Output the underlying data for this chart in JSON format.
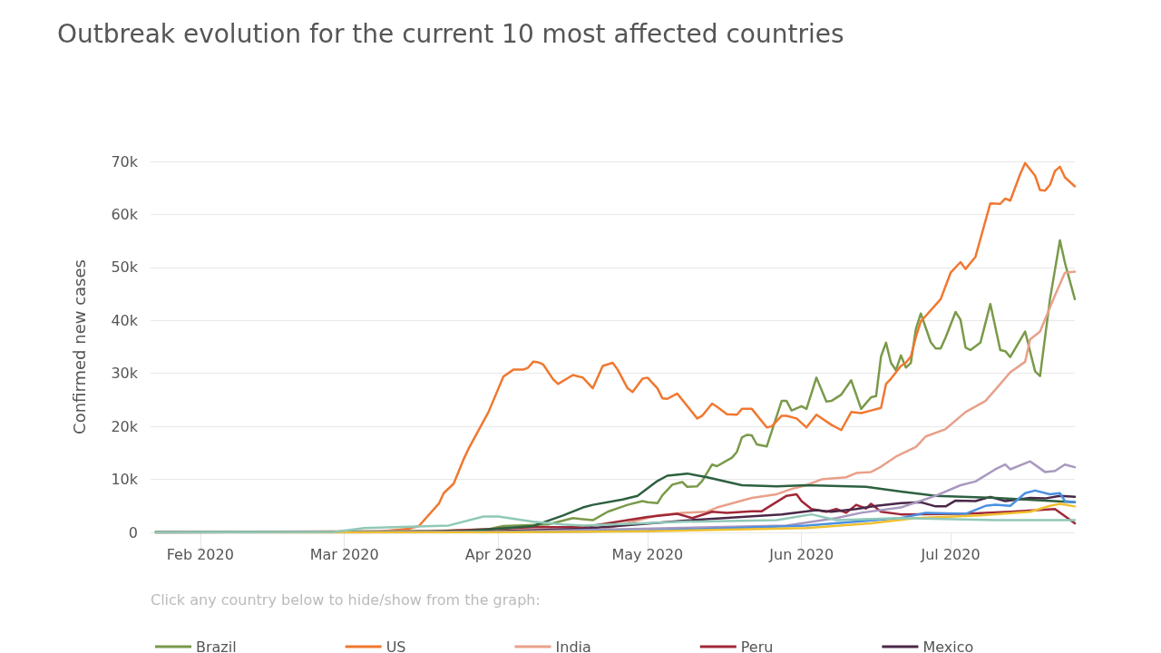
{
  "chart_data": {
    "type": "line",
    "title": "Outbreak evolution for the current 10 most affected countries",
    "ylabel": "Confirmed new cases",
    "annotations": [
      "Click any country below to hide/show from the graph:"
    ],
    "xlim": [
      "2020-01-22",
      "2020-07-26"
    ],
    "xticks": [
      {
        "value": "2020-02-01",
        "label": "Feb 2020"
      },
      {
        "value": "2020-03-01",
        "label": "Mar 2020"
      },
      {
        "value": "2020-04-01",
        "label": "Apr 2020"
      },
      {
        "value": "2020-05-01",
        "label": "May 2020"
      },
      {
        "value": "2020-06-01",
        "label": "Jun 2020"
      },
      {
        "value": "2020-07-01",
        "label": "Jul 2020"
      }
    ],
    "ylim": [
      0,
      70000
    ],
    "yticks": [
      0,
      {
        "value": 10000,
        "label": "10k"
      },
      {
        "value": 20000,
        "label": "20k"
      },
      {
        "value": 30000,
        "label": "30k"
      },
      {
        "value": 40000,
        "label": "40k"
      },
      {
        "value": 50000,
        "label": "50k"
      },
      {
        "value": 60000,
        "label": "60k"
      },
      {
        "value": 70000,
        "label": "70k"
      }
    ],
    "grid": "y",
    "legend": "bottom",
    "marker": "none",
    "series": [
      {
        "name": "Brazil",
        "color": "#7a9a4a",
        "x": [
          "2020-01-23",
          "2020-03-15",
          "2020-03-30",
          "2020-04-02",
          "2020-04-11",
          "2020-04-16",
          "2020-04-18",
          "2020-04-20",
          "2020-04-23",
          "2020-04-27",
          "2020-04-30",
          "2020-05-01",
          "2020-05-03",
          "2020-05-04",
          "2020-05-06",
          "2020-05-08",
          "2020-05-09",
          "2020-05-11",
          "2020-05-12",
          "2020-05-14",
          "2020-05-15",
          "2020-05-18",
          "2020-05-19",
          "2020-05-20",
          "2020-05-21",
          "2020-05-22",
          "2020-05-23",
          "2020-05-25",
          "2020-05-28",
          "2020-05-29",
          "2020-05-30",
          "2020-06-01",
          "2020-06-02",
          "2020-06-04",
          "2020-06-06",
          "2020-06-07",
          "2020-06-09",
          "2020-06-11",
          "2020-06-13",
          "2020-06-15",
          "2020-06-16",
          "2020-06-17",
          "2020-06-18",
          "2020-06-19",
          "2020-06-20",
          "2020-06-21",
          "2020-06-22",
          "2020-06-23",
          "2020-06-24",
          "2020-06-25",
          "2020-06-27",
          "2020-06-28",
          "2020-06-29",
          "2020-06-30",
          "2020-07-02",
          "2020-07-03",
          "2020-07-04",
          "2020-07-05",
          "2020-07-07",
          "2020-07-09",
          "2020-07-11",
          "2020-07-12",
          "2020-07-13",
          "2020-07-16",
          "2020-07-18",
          "2020-07-19",
          "2020-07-21",
          "2020-07-23",
          "2020-07-24",
          "2020-07-26"
        ],
        "values": [
          0,
          100,
          600,
          1200,
          1500,
          2700,
          2500,
          2300,
          3900,
          5200,
          5900,
          5700,
          5500,
          7000,
          9000,
          9500,
          8600,
          8700,
          9700,
          12800,
          12500,
          14100,
          15200,
          17900,
          18400,
          18300,
          16600,
          16200,
          24800,
          24800,
          23000,
          23800,
          23300,
          29200,
          24700,
          24800,
          26000,
          28700,
          23300,
          25500,
          25700,
          33200,
          35800,
          32000,
          30600,
          33400,
          31100,
          32000,
          38300,
          41300,
          35900,
          34700,
          34700,
          36800,
          41600,
          40100,
          34900,
          34400,
          35800,
          43100,
          34400,
          34200,
          33100,
          37900,
          30400,
          29500,
          44000,
          55100,
          50900,
          44000
        ]
      },
      {
        "name": "US",
        "color": "#f07830",
        "x": [
          "2020-01-23",
          "2020-03-01",
          "2020-03-06",
          "2020-03-14",
          "2020-03-16",
          "2020-03-20",
          "2020-03-21",
          "2020-03-23",
          "2020-03-25",
          "2020-03-26",
          "2020-03-30",
          "2020-04-02",
          "2020-04-04",
          "2020-04-06",
          "2020-04-07",
          "2020-04-08",
          "2020-04-09",
          "2020-04-10",
          "2020-04-12",
          "2020-04-13",
          "2020-04-16",
          "2020-04-18",
          "2020-04-20",
          "2020-04-22",
          "2020-04-24",
          "2020-04-25",
          "2020-04-27",
          "2020-04-28",
          "2020-04-30",
          "2020-05-01",
          "2020-05-03",
          "2020-05-04",
          "2020-05-05",
          "2020-05-07",
          "2020-05-11",
          "2020-05-12",
          "2020-05-14",
          "2020-05-15",
          "2020-05-17",
          "2020-05-19",
          "2020-05-20",
          "2020-05-22",
          "2020-05-25",
          "2020-05-26",
          "2020-05-28",
          "2020-05-29",
          "2020-05-31",
          "2020-06-02",
          "2020-06-04",
          "2020-06-07",
          "2020-06-09",
          "2020-06-11",
          "2020-06-13",
          "2020-06-15",
          "2020-06-17",
          "2020-06-18",
          "2020-06-19",
          "2020-06-21",
          "2020-06-22",
          "2020-06-23",
          "2020-06-24",
          "2020-06-25",
          "2020-06-29",
          "2020-07-01",
          "2020-07-03",
          "2020-07-04",
          "2020-07-06",
          "2020-07-09",
          "2020-07-11",
          "2020-07-12",
          "2020-07-13",
          "2020-07-15",
          "2020-07-16",
          "2020-07-18",
          "2020-07-19",
          "2020-07-20",
          "2020-07-21",
          "2020-07-22",
          "2020-07-23",
          "2020-07-24",
          "2020-07-26"
        ],
        "values": [
          0,
          0,
          0,
          700,
          1200,
          5400,
          7400,
          9200,
          13800,
          15800,
          22700,
          29400,
          30700,
          30700,
          31100,
          32200,
          32100,
          31700,
          28900,
          28000,
          29700,
          29200,
          27200,
          31400,
          32000,
          30700,
          27200,
          26500,
          29000,
          29200,
          27200,
          25300,
          25200,
          26200,
          21500,
          22000,
          24300,
          23700,
          22300,
          22200,
          23300,
          23300,
          19800,
          20000,
          22000,
          22000,
          21500,
          19800,
          22200,
          20300,
          19300,
          22700,
          22500,
          23000,
          23500,
          28000,
          29000,
          31400,
          32000,
          33200,
          36800,
          39800,
          44000,
          49000,
          51000,
          49700,
          52000,
          62100,
          62000,
          63000,
          62600,
          67600,
          69700,
          67300,
          64600,
          64500,
          65600,
          68200,
          69000,
          67000,
          65300
        ]
      },
      {
        "name": "India",
        "color": "#e8a08a",
        "x": [
          "2020-01-23",
          "2020-04-22",
          "2020-04-28",
          "2020-05-03",
          "2020-05-08",
          "2020-05-13",
          "2020-05-15",
          "2020-05-22",
          "2020-05-27",
          "2020-05-30",
          "2020-06-02",
          "2020-06-05",
          "2020-06-10",
          "2020-06-12",
          "2020-06-15",
          "2020-06-17",
          "2020-06-20",
          "2020-06-24",
          "2020-06-26",
          "2020-06-30",
          "2020-07-04",
          "2020-07-08",
          "2020-07-11",
          "2020-07-13",
          "2020-07-16",
          "2020-07-17",
          "2020-07-19",
          "2020-07-22",
          "2020-07-24",
          "2020-07-26"
        ],
        "values": [
          0,
          500,
          2000,
          3200,
          3700,
          3900,
          4700,
          6500,
          7200,
          8200,
          8900,
          10000,
          10400,
          11200,
          11400,
          12400,
          14300,
          16100,
          18100,
          19500,
          22700,
          24800,
          28000,
          30200,
          32200,
          36400,
          37900,
          44700,
          49000,
          49200
        ]
      },
      {
        "name": "Peru",
        "color": "#a02838",
        "x": [
          "2020-01-23",
          "2020-03-15",
          "2020-04-08",
          "2020-04-18",
          "2020-04-23",
          "2020-04-27",
          "2020-05-01",
          "2020-05-07",
          "2020-05-10",
          "2020-05-14",
          "2020-05-17",
          "2020-05-22",
          "2020-05-24",
          "2020-05-29",
          "2020-05-31",
          "2020-06-01",
          "2020-06-03",
          "2020-06-06",
          "2020-06-08",
          "2020-06-10",
          "2020-06-12",
          "2020-06-14",
          "2020-06-15",
          "2020-06-17",
          "2020-06-21",
          "2020-07-04",
          "2020-07-13",
          "2020-07-22",
          "2020-07-26"
        ],
        "values": [
          0,
          0,
          1000,
          1000,
          1700,
          2300,
          2900,
          3500,
          2700,
          3900,
          3700,
          4000,
          4000,
          6900,
          7200,
          5900,
          4400,
          3900,
          4400,
          3700,
          5200,
          4500,
          5400,
          3900,
          3400,
          3500,
          3900,
          4400,
          1700
        ]
      },
      {
        "name": "Mexico",
        "color": "#4a2848",
        "x": [
          "2020-01-23",
          "2020-04-01",
          "2020-04-18",
          "2020-05-08",
          "2020-05-28",
          "2020-06-04",
          "2020-06-07",
          "2020-06-12",
          "2020-06-16",
          "2020-06-21",
          "2020-06-25",
          "2020-06-28",
          "2020-06-30",
          "2020-07-02",
          "2020-07-06",
          "2020-07-09",
          "2020-07-12",
          "2020-07-17",
          "2020-07-20",
          "2020-07-23",
          "2020-07-26"
        ],
        "values": [
          0,
          200,
          700,
          2200,
          3400,
          4200,
          3900,
          4400,
          5000,
          5500,
          5700,
          4900,
          4900,
          6000,
          5900,
          6700,
          5900,
          6500,
          6400,
          6900,
          6700
        ]
      },
      {
        "color": "#2e6040",
        "x": [
          "2020-01-23",
          "2020-03-25",
          "2020-04-08",
          "2020-04-14",
          "2020-04-18",
          "2020-04-20",
          "2020-04-26",
          "2020-04-29",
          "2020-05-03",
          "2020-05-05",
          "2020-05-09",
          "2020-05-13",
          "2020-05-20",
          "2020-05-27",
          "2020-06-02",
          "2020-06-14",
          "2020-06-21",
          "2020-06-28",
          "2020-07-10",
          "2020-07-26"
        ],
        "values": [
          0,
          200,
          1200,
          3200,
          4700,
          5200,
          6200,
          6900,
          9700,
          10700,
          11100,
          10400,
          8900,
          8700,
          8900,
          8600,
          7700,
          6900,
          6500,
          5700
        ]
      },
      {
        "color": "#a898c0",
        "x": [
          "2020-01-23",
          "2020-04-01",
          "2020-05-29",
          "2020-06-08",
          "2020-06-13",
          "2020-06-21",
          "2020-06-28",
          "2020-07-03",
          "2020-07-06",
          "2020-07-10",
          "2020-07-12",
          "2020-07-13",
          "2020-07-17",
          "2020-07-20",
          "2020-07-22",
          "2020-07-24",
          "2020-07-26"
        ],
        "values": [
          0,
          100,
          1300,
          2700,
          3700,
          4700,
          6900,
          8900,
          9600,
          11900,
          12800,
          11900,
          13400,
          11400,
          11600,
          12800,
          12300
        ]
      },
      {
        "color": "#4a90e0",
        "x": [
          "2020-01-23",
          "2020-04-01",
          "2020-05-01",
          "2020-06-02",
          "2020-06-21",
          "2020-06-26",
          "2020-07-04",
          "2020-07-08",
          "2020-07-10",
          "2020-07-13",
          "2020-07-16",
          "2020-07-18",
          "2020-07-21",
          "2020-07-23",
          "2020-07-24",
          "2020-07-26"
        ],
        "values": [
          0,
          0,
          300,
          1300,
          2700,
          3700,
          3500,
          5000,
          5200,
          5000,
          7400,
          7900,
          7200,
          7400,
          5900,
          5700
        ]
      },
      {
        "color": "#f0c030",
        "x": [
          "2020-01-23",
          "2020-04-01",
          "2020-05-01",
          "2020-06-02",
          "2020-06-15",
          "2020-06-24",
          "2020-07-07",
          "2020-07-17",
          "2020-07-21",
          "2020-07-23",
          "2020-07-26"
        ],
        "values": [
          0,
          0,
          200,
          800,
          1700,
          2700,
          3200,
          3900,
          5000,
          5400,
          4900
        ]
      },
      {
        "color": "#90c8b8",
        "x": [
          "2020-01-23",
          "2020-02-28",
          "2020-03-05",
          "2020-03-11",
          "2020-03-22",
          "2020-03-29",
          "2020-04-01",
          "2020-04-08",
          "2020-04-14",
          "2020-04-18",
          "2020-05-08",
          "2020-05-27",
          "2020-06-03",
          "2020-06-08",
          "2020-06-21",
          "2020-07-10",
          "2020-07-26"
        ],
        "values": [
          0,
          100,
          800,
          1000,
          1300,
          3000,
          3000,
          2000,
          1500,
          1300,
          2000,
          2300,
          3400,
          2300,
          2700,
          2300,
          2300
        ]
      }
    ]
  }
}
